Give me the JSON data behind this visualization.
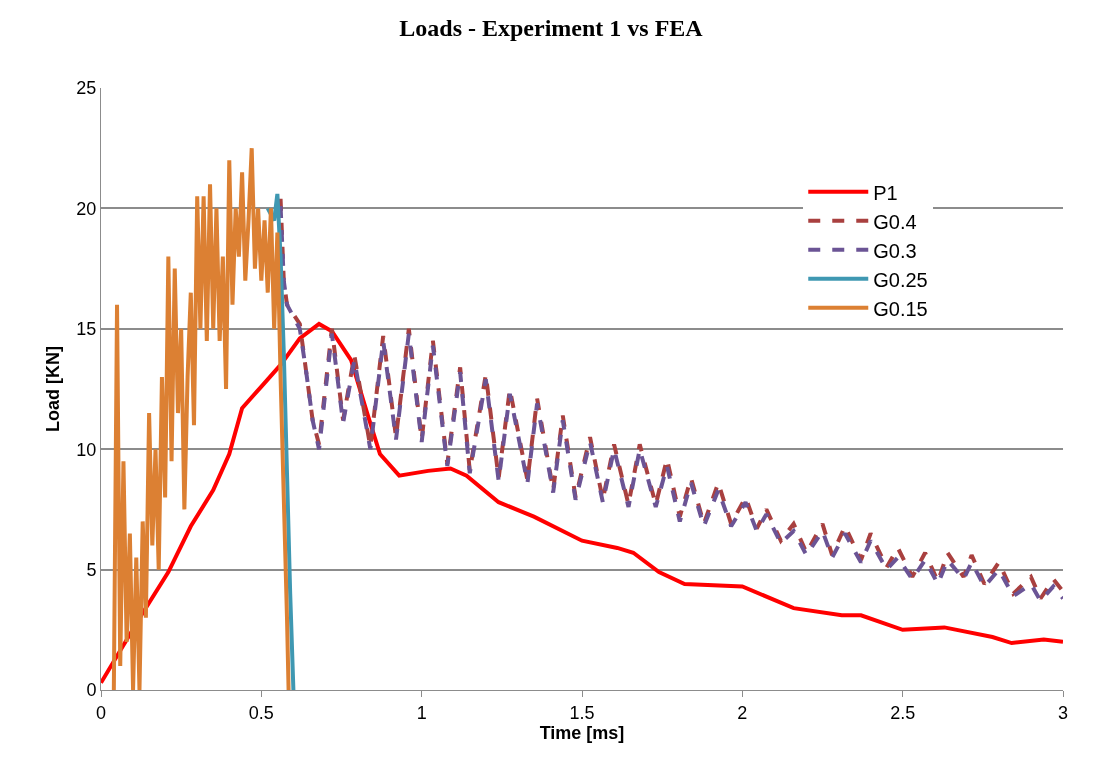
{
  "chart_data": {
    "type": "line",
    "title": "Loads - Experiment 1 vs FEA",
    "xlabel": "Time [ms]",
    "ylabel": "Load [KN]",
    "xlim": [
      0,
      3
    ],
    "xticks": [
      0,
      0.5,
      1,
      1.5,
      2,
      2.5,
      3
    ],
    "ylim": [
      0,
      25
    ],
    "yticks": [
      0,
      5,
      10,
      15,
      20,
      25
    ],
    "grid": "y",
    "legend": "top right",
    "marker": "none",
    "series": [
      {
        "name": "P1",
        "color": "#ff0000",
        "line_style": "solid",
        "x": [
          0,
          0.13,
          0.21,
          0.28,
          0.35,
          0.4,
          0.44,
          0.5,
          0.56,
          0.62,
          0.68,
          0.72,
          0.78,
          0.83,
          0.87,
          0.93,
          1.02,
          1.09,
          1.14,
          1.24,
          1.35,
          1.5,
          1.61,
          1.66,
          1.74,
          1.82,
          2.0,
          2.16,
          2.31,
          2.37,
          2.5,
          2.63,
          2.78,
          2.84,
          2.94,
          3.0
        ],
        "values": [
          0.3,
          3.2,
          4.9,
          6.8,
          8.3,
          9.8,
          11.7,
          12.6,
          13.5,
          14.6,
          15.2,
          14.9,
          13.7,
          11.5,
          9.8,
          8.9,
          9.1,
          9.2,
          8.9,
          7.8,
          7.2,
          6.2,
          5.9,
          5.7,
          4.9,
          4.4,
          4.3,
          3.4,
          3.1,
          3.1,
          2.5,
          2.6,
          2.2,
          1.95,
          2.1,
          2.0
        ]
      },
      {
        "name": "G0.4",
        "color": "#a9403f",
        "line_style": "dashed",
        "x": [
          0.56,
          0.57,
          0.58,
          0.62,
          0.64,
          0.66,
          0.68,
          0.72,
          0.755,
          0.79,
          0.84,
          0.88,
          0.92,
          0.96,
          1.0,
          1.035,
          1.08,
          1.12,
          1.15,
          1.2,
          1.24,
          1.275,
          1.33,
          1.36,
          1.41,
          1.44,
          1.48,
          1.525,
          1.565,
          1.6,
          1.645,
          1.68,
          1.73,
          1.765,
          1.805,
          1.84,
          1.88,
          1.925,
          1.965,
          2.01,
          2.045,
          2.075,
          2.12,
          2.16,
          2.2,
          2.25,
          2.28,
          2.32,
          2.37,
          2.4,
          2.45,
          2.485,
          2.53,
          2.57,
          2.61,
          2.64,
          2.69,
          2.715,
          2.755,
          2.8,
          2.845,
          2.9,
          2.93,
          2.97,
          3.0
        ],
        "values": [
          20.4,
          17,
          16,
          15.2,
          13.2,
          11.2,
          10.2,
          15,
          11.2,
          13.9,
          10.1,
          14.7,
          10.5,
          15,
          10.4,
          14.5,
          9.4,
          13.4,
          9.1,
          13.1,
          8.8,
          12.5,
          8.7,
          12.1,
          8.3,
          11.4,
          8,
          10.5,
          7.9,
          10.2,
          7.7,
          10.2,
          7.7,
          9.6,
          7.2,
          8.8,
          6.9,
          8.6,
          6.9,
          8.0,
          6.7,
          7.5,
          6.2,
          6.9,
          5.7,
          6.9,
          5.6,
          6.8,
          5.4,
          6.5,
          5.1,
          5.9,
          4.7,
          5.7,
          4.5,
          5.7,
          4.7,
          5.6,
          4.4,
          5.3,
          4.0,
          4.7,
          3.8,
          4.6,
          4.1
        ]
      },
      {
        "name": "G0.3",
        "color": "#6b5495",
        "line_style": "dashed",
        "x": [
          0.56,
          0.57,
          0.58,
          0.62,
          0.64,
          0.66,
          0.68,
          0.72,
          0.755,
          0.79,
          0.84,
          0.88,
          0.92,
          0.96,
          1.0,
          1.035,
          1.08,
          1.12,
          1.15,
          1.2,
          1.24,
          1.275,
          1.33,
          1.36,
          1.41,
          1.44,
          1.48,
          1.525,
          1.565,
          1.6,
          1.645,
          1.68,
          1.73,
          1.765,
          1.805,
          1.84,
          1.88,
          1.925,
          1.965,
          2.01,
          2.045,
          2.075,
          2.12,
          2.16,
          2.2,
          2.25,
          2.28,
          2.32,
          2.37,
          2.4,
          2.45,
          2.485,
          2.53,
          2.57,
          2.61,
          2.64,
          2.69,
          2.715,
          2.755,
          2.8,
          2.845,
          2.9,
          2.93,
          2.97,
          3.0
        ],
        "values": [
          20.1,
          17,
          16,
          15,
          13.2,
          11.2,
          10,
          14.8,
          11.1,
          13.7,
          10,
          14.5,
          10.4,
          14.8,
          10.3,
          14.3,
          9.3,
          13.2,
          9,
          12.9,
          8.7,
          12.3,
          8.6,
          11.9,
          8.2,
          11.2,
          7.9,
          10.3,
          7.8,
          10,
          7.6,
          10,
          7.6,
          9.3,
          7,
          8.6,
          6.8,
          8.3,
          6.8,
          7.8,
          6.6,
          7.3,
          6.1,
          6.6,
          5.6,
          6.6,
          5.5,
          6.5,
          5.3,
          6.2,
          5,
          5.5,
          4.6,
          5.4,
          4.4,
          5.4,
          4.6,
          5.3,
          4.3,
          5,
          3.9,
          4.4,
          3.7,
          4.3,
          3.8
        ]
      },
      {
        "name": "G0.25",
        "color": "#3f98b2",
        "line_style": "solid",
        "x": [
          0.52,
          0.54,
          0.55,
          0.56,
          0.57,
          0.58,
          0.59,
          0.6
        ],
        "values": [
          20,
          19.5,
          20.6,
          18,
          14,
          9,
          4,
          0
        ]
      },
      {
        "name": "G0.15",
        "color": "#dc8033",
        "line_style": "solid",
        "x": [
          0.04,
          0.05,
          0.06,
          0.07,
          0.08,
          0.09,
          0.1,
          0.11,
          0.12,
          0.13,
          0.14,
          0.15,
          0.16,
          0.17,
          0.18,
          0.19,
          0.2,
          0.21,
          0.22,
          0.23,
          0.24,
          0.25,
          0.26,
          0.27,
          0.28,
          0.29,
          0.3,
          0.31,
          0.32,
          0.33,
          0.34,
          0.35,
          0.36,
          0.37,
          0.38,
          0.39,
          0.4,
          0.41,
          0.42,
          0.43,
          0.44,
          0.45,
          0.46,
          0.47,
          0.48,
          0.49,
          0.5,
          0.51,
          0.52,
          0.53,
          0.54,
          0.55,
          0.56,
          0.57,
          0.58,
          0.585
        ],
        "values": [
          0,
          16,
          1,
          9.5,
          2,
          6.5,
          0,
          5.5,
          0,
          7,
          3,
          11.5,
          6,
          10,
          5,
          13,
          8,
          18,
          9.5,
          17.5,
          11.5,
          15,
          7.5,
          13,
          16.5,
          11,
          20.5,
          15,
          20.5,
          14.5,
          21,
          15,
          20,
          14.5,
          18,
          12.5,
          22,
          16,
          20,
          18,
          21.5,
          17,
          19.5,
          22.5,
          17.5,
          20,
          17,
          19.5,
          16.5,
          20,
          15,
          19,
          13,
          8,
          3,
          0
        ]
      }
    ]
  }
}
